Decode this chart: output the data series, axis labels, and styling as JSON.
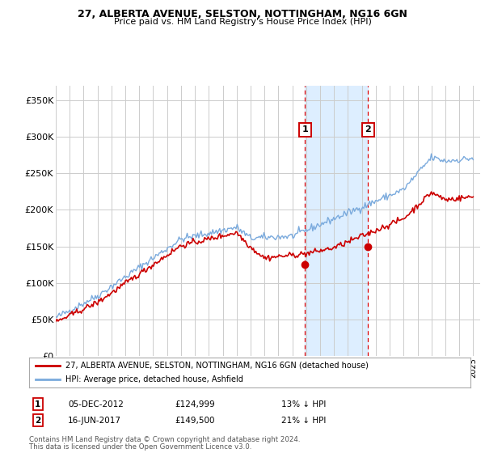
{
  "title": "27, ALBERTA AVENUE, SELSTON, NOTTINGHAM, NG16 6GN",
  "subtitle": "Price paid vs. HM Land Registry's House Price Index (HPI)",
  "red_label": "27, ALBERTA AVENUE, SELSTON, NOTTINGHAM, NG16 6GN (detached house)",
  "blue_label": "HPI: Average price, detached house, Ashfield",
  "annotation1": {
    "num": "1",
    "date": "05-DEC-2012",
    "price": "£124,999",
    "pct": "13% ↓ HPI",
    "x_year": 2012.92,
    "y_val": 124999
  },
  "annotation2": {
    "num": "2",
    "date": "16-JUN-2017",
    "price": "£149,500",
    "pct": "21% ↓ HPI",
    "x_year": 2017.45,
    "y_val": 149500
  },
  "footer1": "Contains HM Land Registry data © Crown copyright and database right 2024.",
  "footer2": "This data is licensed under the Open Government Licence v3.0.",
  "ylim": [
    0,
    370000
  ],
  "yticks": [
    0,
    50000,
    100000,
    150000,
    200000,
    250000,
    300000,
    350000
  ],
  "ytick_labels": [
    "£0",
    "£50K",
    "£100K",
    "£150K",
    "£200K",
    "£250K",
    "£300K",
    "£350K"
  ],
  "red_color": "#cc0000",
  "blue_color": "#7aaadd",
  "highlight_color": "#ddeeff",
  "vline_color": "#dd0000",
  "grid_color": "#cccccc",
  "xlim_start": 1995,
  "xlim_end": 2025.5
}
